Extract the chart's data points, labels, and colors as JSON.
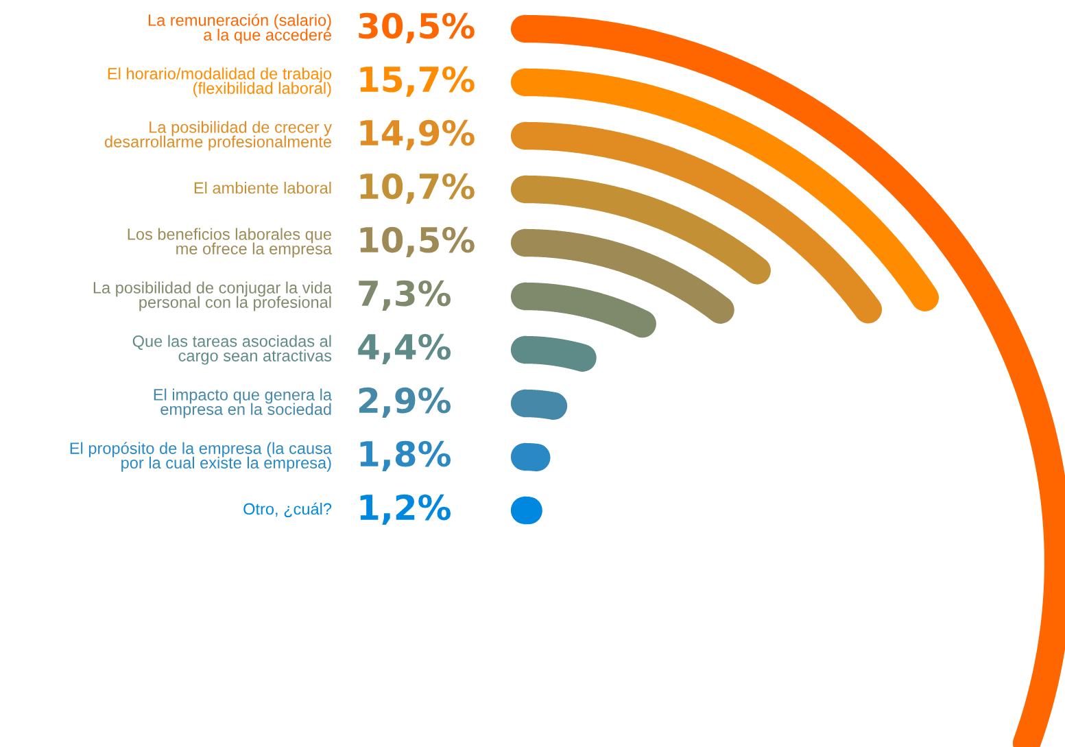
{
  "chart_data": {
    "type": "other",
    "categories": [
      "La remuneración (salario)\na la que accederé",
      "El horario/modalidad de trabajo\n(flexibilidad laboral)",
      "La posibilidad de crecer y\ndesarrollarme profesionalmente",
      "El ambiente laboral",
      "Los beneficios laborales que\nme ofrece la empresa",
      "La posibilidad de conjugar la vida\npersonal con la profesional",
      "Que las tareas asociadas al\ncargo sean atractivas",
      "El impacto que genera la\nempresa en la sociedad",
      "El propósito de la empresa (la causa\npor la cual existe la empresa)",
      "Otro, ¿cuál?"
    ],
    "values": [
      30.5,
      15.7,
      14.9,
      10.7,
      10.5,
      7.3,
      4.4,
      2.9,
      1.8,
      1.2
    ],
    "value_labels": [
      "30,5%",
      "15,7%",
      "14,9%",
      "10,7%",
      "10,5%",
      "7,3%",
      "4,4%",
      "2,9%",
      "1,8%",
      "1,2%"
    ],
    "colors": [
      "#ff6600",
      "#ff8c00",
      "#e08c22",
      "#c49036",
      "#9e8a55",
      "#7f8a6c",
      "#5e8a88",
      "#4688a8",
      "#2a88c4",
      "#0088e0"
    ]
  }
}
